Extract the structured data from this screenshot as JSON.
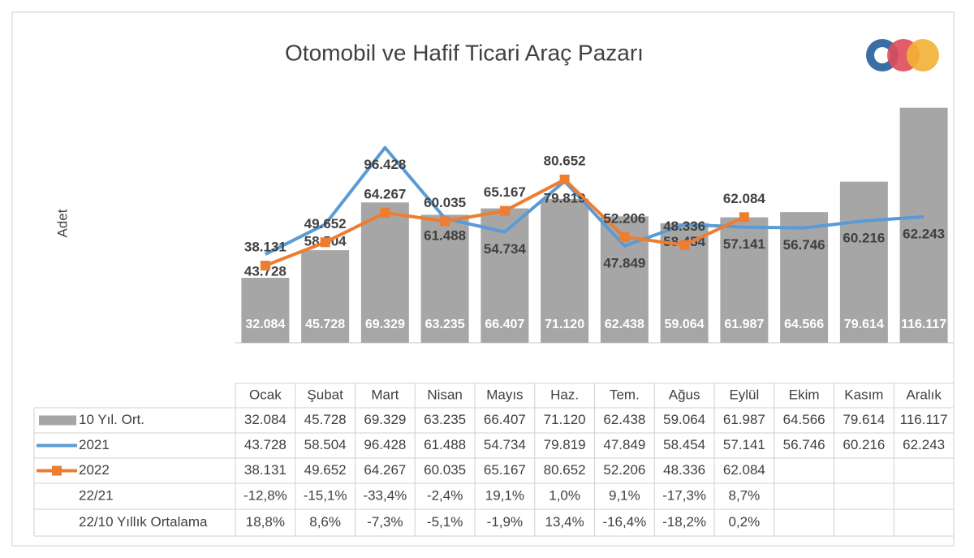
{
  "chart_data": {
    "type": "bar",
    "title": "Otomobil ve Hafif Ticari Araç Pazarı",
    "y_label": "Adet",
    "ylim": [
      0,
      120000
    ],
    "categories": [
      "Ocak",
      "Şubat",
      "Mart",
      "Nisan",
      "Mayıs",
      "Haz.",
      "Tem.",
      "Ağus",
      "Eylül",
      "Ekim",
      "Kasım",
      "Aralık"
    ],
    "series": [
      {
        "name": "10 Yıl. Ort.",
        "type": "bar",
        "color": "#a6a6a6",
        "values": [
          32084,
          45728,
          69329,
          63235,
          66407,
          71120,
          62438,
          59064,
          61987,
          64566,
          79614,
          116117
        ],
        "value_labels": [
          "32.084",
          "45.728",
          "69.329",
          "63.235",
          "66.407",
          "71.120",
          "62.438",
          "59.064",
          "61.987",
          "64.566",
          "79.614",
          "116.117"
        ]
      },
      {
        "name": "2021",
        "type": "line",
        "color": "#5b9bd5",
        "values": [
          43728,
          58504,
          96428,
          61488,
          54734,
          79819,
          47849,
          58454,
          57141,
          56746,
          60216,
          62243
        ],
        "value_labels": [
          "43.728",
          "58.504",
          "96.428",
          "61.488",
          "54.734",
          "79.819",
          "47.849",
          "58.454",
          "57.141",
          "56.746",
          "60.216",
          "62.243"
        ]
      },
      {
        "name": "2022",
        "type": "line",
        "color": "#ed7d31",
        "marker": "square",
        "values": [
          38131,
          49652,
          64267,
          60035,
          65167,
          80652,
          52206,
          48336,
          62084,
          null,
          null,
          null
        ],
        "value_labels": [
          "38.131",
          "49.652",
          "64.267",
          "60.035",
          "65.167",
          "80.652",
          "52.206",
          "48.336",
          "62.084",
          null,
          null,
          null
        ]
      }
    ],
    "table_rows": [
      {
        "name": "22/21",
        "values": [
          -12.8,
          -15.1,
          -33.4,
          -2.4,
          19.1,
          1.0,
          9.1,
          -17.3,
          8.7,
          null,
          null,
          null
        ],
        "value_labels": [
          "-12,8%",
          "-15,1%",
          "-33,4%",
          "-2,4%",
          "19,1%",
          "1,0%",
          "9,1%",
          "-17,3%",
          "8,7%",
          null,
          null,
          null
        ]
      },
      {
        "name": "22/10 Yıllık Ortalama",
        "values": [
          18.8,
          8.6,
          -7.3,
          -5.1,
          -1.9,
          13.4,
          -16.4,
          -18.2,
          0.2,
          null,
          null,
          null
        ],
        "value_labels": [
          "18,8%",
          "8,6%",
          "-7,3%",
          "-5,1%",
          "-1,9%",
          "13,4%",
          "-16,4%",
          "-18,2%",
          "0,2%",
          null,
          null,
          null
        ]
      }
    ]
  }
}
